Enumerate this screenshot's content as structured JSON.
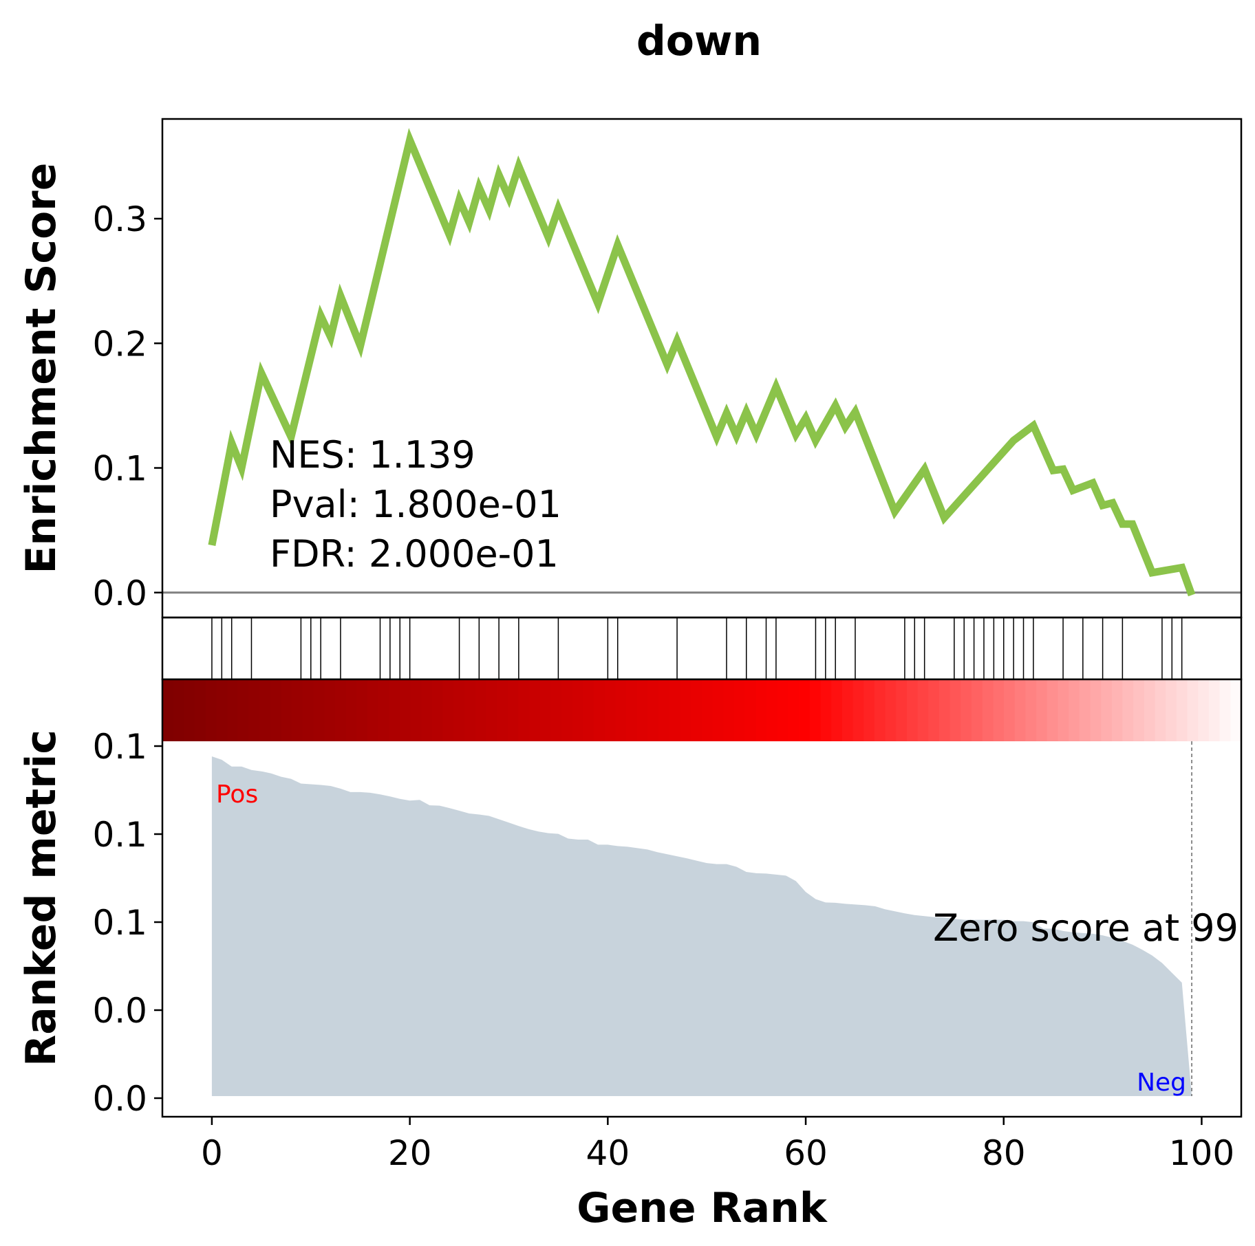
{
  "title": "down",
  "chart_data": [
    {
      "type": "line",
      "panel": "enrichment-score",
      "ylabel": "Enrichment Score",
      "ylim": [
        -0.02,
        0.38
      ],
      "yticks": [
        0.0,
        0.1,
        0.2,
        0.3
      ],
      "ytick_labels": [
        "0.0",
        "0.1",
        "0.2",
        "0.3"
      ],
      "line_color": "#8bc34a",
      "zero_line_color": "#808080",
      "x": [
        0,
        2,
        3,
        5,
        8,
        11,
        12,
        13,
        15,
        20,
        24,
        25,
        26,
        27,
        28,
        29,
        30,
        31,
        34,
        35,
        39,
        41,
        46,
        47,
        51,
        52,
        53,
        54,
        55,
        57,
        59,
        60,
        61,
        63,
        64,
        65,
        69,
        72,
        74,
        81,
        83,
        85,
        86,
        87,
        89,
        90,
        91,
        92,
        93,
        95,
        98,
        99
      ],
      "y": [
        0.038,
        0.12,
        0.1,
        0.176,
        0.125,
        0.222,
        0.205,
        0.238,
        0.198,
        0.363,
        0.287,
        0.315,
        0.297,
        0.325,
        0.307,
        0.335,
        0.317,
        0.342,
        0.285,
        0.308,
        0.232,
        0.279,
        0.183,
        0.202,
        0.125,
        0.144,
        0.126,
        0.145,
        0.127,
        0.165,
        0.127,
        0.14,
        0.122,
        0.15,
        0.133,
        0.145,
        0.065,
        0.099,
        0.06,
        0.122,
        0.134,
        0.098,
        0.099,
        0.082,
        0.088,
        0.07,
        0.072,
        0.055,
        0.055,
        0.016,
        0.02,
        -0.002
      ],
      "annotations": {
        "nes": "NES: 1.139",
        "pval": "Pval: 1.800e-01",
        "fdr": "FDR: 2.000e-01"
      }
    },
    {
      "type": "hits",
      "panel": "gene-set-hits",
      "hit_positions": [
        0,
        1,
        2,
        4,
        9,
        10,
        11,
        13,
        17,
        18,
        19,
        20,
        25,
        27,
        29,
        31,
        35,
        40,
        41,
        47,
        52,
        54,
        56,
        57,
        61,
        62,
        63,
        65,
        70,
        71,
        72,
        75,
        76,
        77,
        78,
        79,
        80,
        81,
        82,
        83,
        86,
        88,
        90,
        92,
        96,
        97,
        98
      ]
    },
    {
      "type": "area",
      "panel": "ranked-metric",
      "ylabel": "Ranked metric",
      "xlabel": "Gene Rank",
      "xlim": [
        -5,
        104
      ],
      "xticks": [
        0,
        20,
        40,
        60,
        80,
        100
      ],
      "xtick_labels": [
        "0",
        "20",
        "40",
        "60",
        "80",
        "100"
      ],
      "ytick_labels": [
        "0.0",
        "0.0",
        "0.1",
        "0.1",
        "0.1"
      ],
      "fill_color": "#c8d3dc",
      "x": [
        0,
        1,
        2,
        3,
        4,
        5,
        6,
        7,
        8,
        9,
        10,
        11,
        12,
        13,
        14,
        15,
        16,
        17,
        18,
        19,
        20,
        21,
        22,
        23,
        24,
        25,
        26,
        27,
        28,
        29,
        30,
        31,
        32,
        33,
        34,
        35,
        36,
        37,
        38,
        39,
        40,
        41,
        42,
        43,
        44,
        45,
        46,
        47,
        48,
        49,
        50,
        51,
        52,
        53,
        54,
        55,
        56,
        57,
        58,
        59,
        60,
        61,
        62,
        63,
        64,
        65,
        66,
        67,
        68,
        69,
        70,
        71,
        72,
        73,
        74,
        75,
        76,
        77,
        78,
        79,
        80,
        81,
        82,
        83,
        84,
        85,
        86,
        87,
        88,
        89,
        90,
        91,
        92,
        93,
        94,
        95,
        96,
        97,
        98,
        99
      ],
      "values": [
        1.0,
        0.99,
        0.97,
        0.97,
        0.96,
        0.956,
        0.95,
        0.94,
        0.934,
        0.92,
        0.918,
        0.916,
        0.913,
        0.905,
        0.895,
        0.895,
        0.893,
        0.888,
        0.882,
        0.875,
        0.87,
        0.872,
        0.856,
        0.855,
        0.848,
        0.84,
        0.832,
        0.829,
        0.825,
        0.815,
        0.805,
        0.795,
        0.786,
        0.779,
        0.774,
        0.772,
        0.758,
        0.755,
        0.755,
        0.74,
        0.74,
        0.736,
        0.734,
        0.73,
        0.726,
        0.718,
        0.712,
        0.706,
        0.7,
        0.693,
        0.686,
        0.683,
        0.683,
        0.675,
        0.66,
        0.656,
        0.655,
        0.652,
        0.649,
        0.633,
        0.601,
        0.58,
        0.57,
        0.569,
        0.566,
        0.564,
        0.562,
        0.559,
        0.55,
        0.544,
        0.538,
        0.533,
        0.53,
        0.527,
        0.526,
        0.522,
        0.519,
        0.519,
        0.519,
        0.519,
        0.519,
        0.515,
        0.515,
        0.512,
        0.493,
        0.493,
        0.486,
        0.482,
        0.48,
        0.478,
        0.473,
        0.466,
        0.457,
        0.446,
        0.431,
        0.414,
        0.392,
        0.363,
        0.334,
        0.0
      ],
      "fill_values": [
        0.24,
        0.232,
        0.225,
        0.22,
        0.217,
        0.215,
        0.209,
        0.203,
        0.197,
        0.188,
        0.186,
        0.185,
        0.183,
        0.178,
        0.173,
        0.173,
        0.172,
        0.169,
        0.166,
        0.162,
        0.158,
        0.159,
        0.152,
        0.151,
        0.147,
        0.143,
        0.139,
        0.137,
        0.135,
        0.129,
        0.124,
        0.118,
        0.114,
        0.11,
        0.107,
        0.106,
        0.099,
        0.098,
        0.097,
        0.09,
        0.089,
        0.087,
        0.086,
        0.084,
        0.082,
        0.078,
        0.075,
        0.072,
        0.069,
        0.065,
        0.062,
        0.06,
        0.06,
        0.056,
        0.049,
        0.047,
        0.046,
        0.045,
        0.044,
        0.036,
        0.022,
        0.014,
        0.01,
        0.009,
        0.008,
        0.007,
        0.006,
        0.005,
        0.002,
        0.0,
        -0.002,
        -0.005,
        -0.007,
        -0.009,
        -0.01,
        -0.012,
        -0.014,
        -0.015,
        -0.016,
        -0.017,
        -0.019,
        -0.021,
        -0.022,
        -0.024,
        -0.031,
        -0.033,
        -0.036,
        -0.038,
        -0.041,
        -0.044,
        -0.047,
        -0.05,
        -0.053,
        -0.057,
        -0.061,
        -0.064,
        -0.067,
        -0.069,
        -0.071,
        -0.072
      ],
      "pos_label": "Pos",
      "neg_label": "Neg",
      "pos_color": "#ff0000",
      "neg_color": "#0000ff",
      "zero_score_text": "Zero score at 99",
      "zero_score_x": 99,
      "ylim_pos": [
        0.0,
        0.1
      ]
    }
  ]
}
